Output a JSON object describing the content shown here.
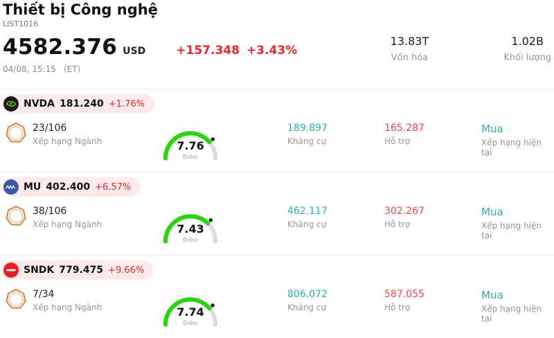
{
  "header": {
    "title": "Thiết bị Công nghệ",
    "list_id": "LIST1016",
    "price": "4582.376",
    "currency": "USD",
    "change": "+157.348",
    "change_pct": "+3.43%",
    "datetime": "04/08, 15:15 （ET）",
    "market_cap": {
      "value": "13.83T",
      "label": "Vốn hóa"
    },
    "volume": {
      "value": "1.02B",
      "label": "Khối lượng"
    }
  },
  "labels": {
    "industry_rank": "Xếp hạng Ngành",
    "score_unit": "Điểm",
    "resistance": "Kháng cự",
    "support": "Hỗ trợ",
    "current_rating": "Xếp hạng hiện tại"
  },
  "colors": {
    "up_red": "#ea2530",
    "support_red": "#ee454d",
    "teal": "#26b3aa",
    "gauge_green": "#2fd20f",
    "badge_orange": "#c9732f",
    "pill_bg": "#fcebea"
  },
  "stocks": [
    {
      "ticker": "NVDA",
      "logo": "nvidia-logo",
      "price": "181.240",
      "change_pct": "+1.76%",
      "rank": "23/106",
      "score": "7.76",
      "resistance": "189.897",
      "support": "165.287",
      "rating": "Mua"
    },
    {
      "ticker": "MU",
      "logo": "micron-logo",
      "price": "402.400",
      "change_pct": "+6.57%",
      "rank": "38/106",
      "score": "7.43",
      "resistance": "462.117",
      "support": "302.267",
      "rating": "Mua"
    },
    {
      "ticker": "SNDK",
      "logo": "sandisk-logo",
      "price": "779.475",
      "change_pct": "+9.66%",
      "rank": "7/34",
      "score": "7.74",
      "resistance": "806.072",
      "support": "587.055",
      "rating": "Mua"
    }
  ]
}
